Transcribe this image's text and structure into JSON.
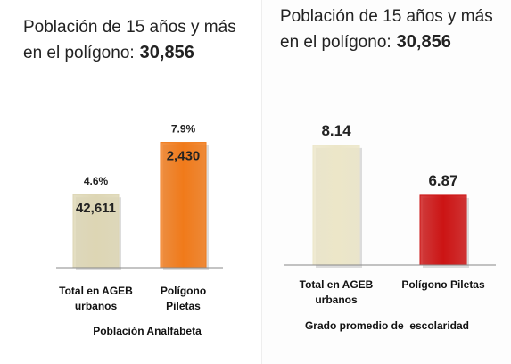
{
  "chart_data": [
    {
      "type": "bar",
      "title": "Población de 15 años y más en el polígono:",
      "title_value": "30,856",
      "categories": [
        "Total en AGEB urbanos",
        "Polígono Piletas"
      ],
      "values": [
        4.6,
        7.9
      ],
      "value_labels": [
        "4.6%",
        "7.9%"
      ],
      "bar_labels": [
        "42,611",
        "2,430"
      ],
      "colors": [
        "#ddd6b4",
        "#f07a1a"
      ],
      "xlabel": "Población Analfabeta",
      "ylim": [
        0,
        9
      ]
    },
    {
      "type": "bar",
      "title": "Población de 15 años y más en el polígono:",
      "title_value": "30,856",
      "categories": [
        "Total en AGEB urbanos",
        "Polígono Piletas"
      ],
      "values": [
        8.14,
        6.87
      ],
      "colors": [
        "#ece6c8",
        "#cc1414"
      ],
      "xlabel": "Grado promedio de  escolaridad",
      "ylim": [
        5.1,
        8.5
      ]
    }
  ]
}
